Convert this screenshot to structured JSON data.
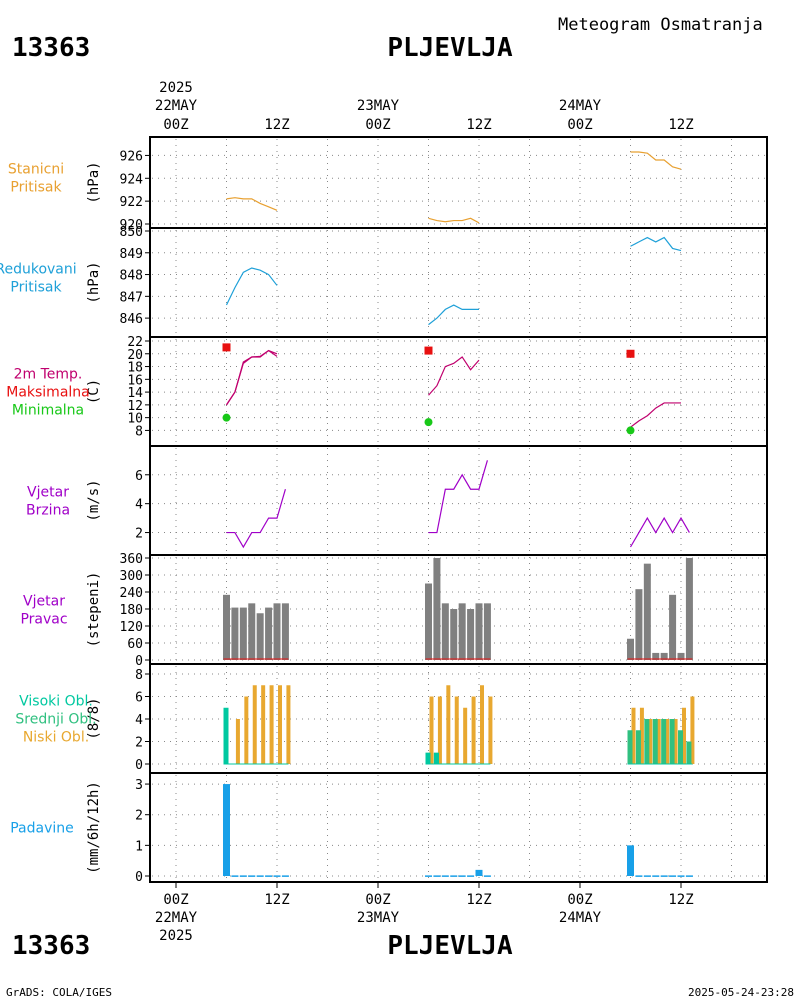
{
  "header": {
    "station_id": "13363",
    "station_name": "PLJEVLJA",
    "title": "Meteogram Osmatranja"
  },
  "footer": {
    "source": "GrADS: COLA/IGES",
    "timestamp": "2025-05-24-23:28"
  },
  "time_axis": {
    "top_year": "2025",
    "bottom_year": "2025",
    "dates": [
      "22MAY",
      "23MAY",
      "24MAY"
    ],
    "tick_labels": [
      "00Z",
      "12Z",
      "00Z",
      "12Z",
      "00Z",
      "12Z"
    ]
  },
  "colors": {
    "pressure": "#e8a030",
    "reduced": "#1ea0d8",
    "temp": "#c0006e",
    "max": "#e81010",
    "min": "#18c818",
    "wind": "#a000c8",
    "dir": "#808080",
    "high_cloud": "#00c8a0",
    "mid_cloud": "#30c080",
    "low_cloud": "#e8a830",
    "precip": "#18a0e8"
  },
  "chart_data": [
    {
      "type": "line",
      "panel": "stanicni-pritisak",
      "labels": [
        "Stanicni",
        "Pritisak"
      ],
      "unit": "(hPa)",
      "ylim": [
        920,
        927
      ],
      "yticks": [
        920,
        922,
        924,
        926
      ],
      "series": [
        {
          "name": "Stanicni Pritisak",
          "x": [
            6,
            7,
            8,
            9,
            10,
            11,
            12
          ],
          "y": [
            922.2,
            922.3,
            922.2,
            922.2,
            921.8,
            921.5,
            921.2
          ]
        },
        {
          "name": "Stanicni Pritisak",
          "x": [
            30,
            31,
            32,
            33,
            34,
            35,
            36
          ],
          "y": [
            920.5,
            920.3,
            920.2,
            920.3,
            920.3,
            920.5,
            920.1
          ]
        },
        {
          "name": "Stanicni Pritisak",
          "x": [
            54,
            55,
            56,
            57,
            58,
            59,
            60
          ],
          "y": [
            926.3,
            926.3,
            926.2,
            925.6,
            925.6,
            925.0,
            924.8
          ]
        }
      ]
    },
    {
      "type": "line",
      "panel": "redukovani-pritisak",
      "labels": [
        "Redukovani",
        "Pritisak"
      ],
      "unit": "(hPa)",
      "ylim": [
        845.5,
        850
      ],
      "yticks": [
        846,
        847,
        848,
        849,
        850
      ],
      "series": [
        {
          "name": "Redukovani Pritisak",
          "x": [
            6,
            7,
            8,
            9,
            10,
            11,
            12
          ],
          "y": [
            846.6,
            847.4,
            848.1,
            848.3,
            848.2,
            848.0,
            847.5
          ]
        },
        {
          "name": "Redukovani Pritisak",
          "x": [
            30,
            31,
            32,
            33,
            34,
            35,
            36
          ],
          "y": [
            845.7,
            846.0,
            846.4,
            846.6,
            846.4,
            846.4,
            846.4
          ]
        },
        {
          "name": "Redukovani Pritisak",
          "x": [
            54,
            55,
            56,
            57,
            58,
            59,
            60
          ],
          "y": [
            849.3,
            849.5,
            849.7,
            849.5,
            849.7,
            849.2,
            849.1
          ]
        }
      ]
    },
    {
      "type": "line",
      "panel": "temperatura",
      "labels": [
        "2m Temp.",
        "Maksimalna",
        "Minimalna"
      ],
      "unit": "(C)",
      "ylim": [
        6.5,
        22
      ],
      "yticks": [
        8,
        10,
        12,
        14,
        16,
        18,
        20,
        22
      ],
      "series": [
        {
          "name": "2m Temp.",
          "x": [
            6,
            7,
            8,
            9,
            10,
            11,
            12
          ],
          "y": [
            12.0,
            14.0,
            18.5,
            19.5,
            19.5,
            20.5,
            20.0
          ]
        },
        {
          "name": "2m Temp.",
          "x": [
            6,
            7,
            8,
            9,
            10,
            11,
            12
          ],
          "y": [
            12.0,
            14.0,
            18.7,
            19.5,
            19.6,
            20.5,
            19.6
          ]
        },
        {
          "name": "2m Temp.",
          "x": [
            30,
            31,
            32,
            33,
            34,
            35,
            36
          ],
          "y": [
            13.5,
            15.0,
            18.0,
            18.5,
            19.5,
            17.5,
            19.0
          ]
        },
        {
          "name": "2m Temp.",
          "x": [
            54,
            55,
            56,
            57,
            58,
            59,
            60
          ],
          "y": [
            8.5,
            9.5,
            10.3,
            11.5,
            12.3,
            12.3,
            12.3
          ]
        }
      ],
      "max_points": {
        "x": [
          6,
          30,
          54
        ],
        "y": [
          21.0,
          20.5,
          20.0
        ]
      },
      "min_points": {
        "x": [
          6,
          30,
          54
        ],
        "y": [
          10.0,
          9.3,
          8.0
        ]
      }
    },
    {
      "type": "line",
      "panel": "vjetar-brzina",
      "labels": [
        "Vjetar",
        "Brzina"
      ],
      "unit": "(m/s)",
      "ylim": [
        1,
        7.3
      ],
      "yticks": [
        2,
        4,
        6
      ],
      "series": [
        {
          "name": "Vjetar Brzina",
          "x": [
            6,
            7,
            8,
            9,
            10,
            11,
            12,
            13
          ],
          "y": [
            2,
            2,
            1,
            2,
            2,
            3,
            3,
            5
          ]
        },
        {
          "name": "Vjetar Brzina",
          "x": [
            30,
            31,
            32,
            33,
            34,
            35,
            36,
            37
          ],
          "y": [
            2,
            2,
            5,
            5,
            6,
            5,
            5,
            7
          ]
        },
        {
          "name": "Vjetar Brzina",
          "x": [
            54,
            55,
            56,
            57,
            58,
            59,
            60,
            61
          ],
          "y": [
            1,
            2,
            3,
            2,
            3,
            2,
            3,
            2
          ]
        }
      ]
    },
    {
      "type": "bar",
      "panel": "vjetar-pravac",
      "labels": [
        "Vjetar",
        "Pravac"
      ],
      "unit": "(stepeni)",
      "ylim": [
        0,
        360
      ],
      "yticks": [
        0,
        60,
        120,
        180,
        240,
        300,
        360
      ],
      "x": [
        6,
        7,
        8,
        9,
        10,
        11,
        12,
        13,
        30,
        31,
        32,
        33,
        34,
        35,
        36,
        37,
        54,
        55,
        56,
        57,
        58,
        59,
        60,
        61
      ],
      "values": [
        230,
        185,
        185,
        200,
        165,
        185,
        200,
        200,
        270,
        360,
        200,
        180,
        200,
        180,
        200,
        200,
        75,
        250,
        340,
        25,
        25,
        230,
        25,
        360
      ]
    },
    {
      "type": "bar",
      "panel": "oblacnost",
      "labels": [
        "Visoki Obl.",
        "Srednji Obl.",
        "Niski Obl."
      ],
      "unit": "(8/8)",
      "ylim": [
        0,
        8
      ],
      "yticks": [
        0,
        2,
        4,
        6,
        8
      ],
      "x": [
        6,
        7,
        8,
        9,
        10,
        11,
        12,
        13,
        30,
        31,
        32,
        33,
        34,
        35,
        36,
        37,
        54,
        55,
        56,
        57,
        58,
        59,
        60,
        61
      ],
      "series": [
        {
          "name": "Visoki Obl.",
          "values": [
            5,
            0,
            0,
            0,
            0,
            0,
            0,
            0,
            1,
            1,
            0,
            0,
            0,
            0,
            0,
            0,
            0,
            0,
            0,
            0,
            0,
            0,
            0,
            0
          ]
        },
        {
          "name": "Srednji Obl.",
          "values": [
            0,
            0,
            0,
            0,
            0,
            0,
            0,
            0,
            1,
            1,
            0,
            0,
            0,
            0,
            0,
            0,
            3,
            3,
            4,
            4,
            4,
            4,
            3,
            2
          ]
        },
        {
          "name": "Niski Obl.",
          "values": [
            0,
            4,
            6,
            7,
            7,
            7,
            7,
            7,
            6,
            6,
            7,
            6,
            5,
            6,
            7,
            6,
            5,
            5,
            4,
            4,
            4,
            4,
            5,
            6
          ]
        }
      ]
    },
    {
      "type": "bar",
      "panel": "padavine",
      "labels": [
        "Padavine"
      ],
      "unit": "(mm/6h/12h)",
      "ylim": [
        0,
        3.1
      ],
      "yticks": [
        0,
        1,
        2,
        3
      ],
      "x": [
        6,
        7,
        8,
        9,
        10,
        11,
        12,
        13,
        30,
        31,
        32,
        33,
        34,
        35,
        36,
        37,
        54,
        55,
        56,
        57,
        58,
        59,
        60,
        61
      ],
      "values": [
        3.0,
        0.02,
        0.02,
        0.02,
        0.02,
        0.02,
        0.02,
        0.02,
        0.02,
        0.02,
        0.02,
        0.02,
        0.02,
        0.02,
        0.2,
        0.02,
        1.0,
        0.02,
        0.02,
        0.02,
        0.02,
        0.02,
        0.02,
        0.02
      ]
    }
  ]
}
